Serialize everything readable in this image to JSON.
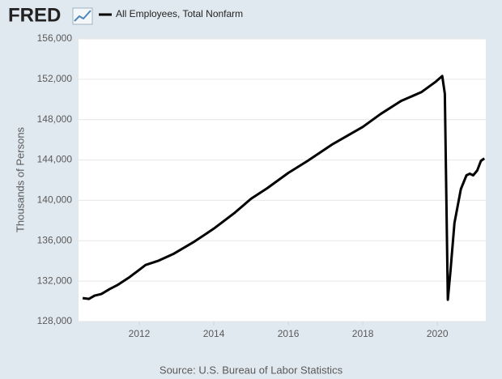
{
  "chart_data": {
    "type": "line",
    "logo": "FRED",
    "y_label": "Thousands of Persons",
    "source": "Source: U.S. Bureau of Labor Statistics",
    "x": [
      2010.48,
      2010.65,
      2010.8,
      2010.98,
      2011.2,
      2011.41,
      2011.74,
      2012.0,
      2012.17,
      2012.5,
      2012.93,
      2013.48,
      2014.0,
      2014.57,
      2015.0,
      2015.43,
      2016.0,
      2016.52,
      2017.17,
      2018.0,
      2018.48,
      2019.02,
      2019.57,
      2019.96,
      2020.13,
      2020.2,
      2020.28,
      2020.35,
      2020.46,
      2020.63,
      2020.78,
      2020.87,
      2020.96,
      2021.07,
      2021.17,
      2021.26
    ],
    "series": [
      {
        "name": "All Employees, Total Nonfarm",
        "color": "#000000",
        "values": [
          130320,
          130240,
          130560,
          130720,
          131200,
          131600,
          132400,
          133120,
          133600,
          134000,
          134720,
          135920,
          137200,
          138800,
          140160,
          141200,
          142720,
          143920,
          145520,
          147280,
          148560,
          149840,
          150720,
          151760,
          152320,
          150560,
          130160,
          132960,
          137760,
          141120,
          142480,
          142640,
          142480,
          142960,
          143920,
          144160
        ]
      }
    ],
    "xlim": [
      2010.37,
      2021.3
    ],
    "xticks": [
      2012,
      2014,
      2016,
      2018,
      2020
    ],
    "ylim": [
      128000,
      156000
    ],
    "yticks": [
      {
        "value": 128000,
        "label": "128,000"
      },
      {
        "value": 132000,
        "label": "132,000"
      },
      {
        "value": 136000,
        "label": "136,000"
      },
      {
        "value": 140000,
        "label": "140,000"
      },
      {
        "value": 144000,
        "label": "144,000"
      },
      {
        "value": 148000,
        "label": "148,000"
      },
      {
        "value": 152000,
        "label": "152,000"
      },
      {
        "value": 156000,
        "label": "156,000"
      }
    ],
    "grid": true
  }
}
